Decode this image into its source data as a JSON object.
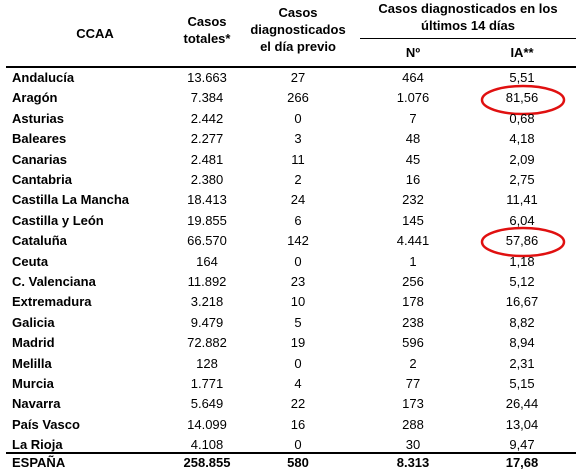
{
  "header": {
    "ccaa": "CCAA",
    "totales": [
      "Casos",
      "totales*"
    ],
    "previo": [
      "Casos",
      "diagnosticados",
      "el día previo"
    ],
    "group": [
      "Casos diagnosticados en los",
      "últimos 14 días"
    ],
    "n": "Nº",
    "ia": "IA**"
  },
  "table": {
    "rows": [
      [
        "Andalucía",
        "13.663",
        "27",
        "464",
        "5,51"
      ],
      [
        "Aragón",
        "7.384",
        "266",
        "1.076",
        "81,56"
      ],
      [
        "Asturias",
        "2.442",
        "0",
        "7",
        "0,68"
      ],
      [
        "Baleares",
        "2.277",
        "3",
        "48",
        "4,18"
      ],
      [
        "Canarias",
        "2.481",
        "11",
        "45",
        "2,09"
      ],
      [
        "Cantabria",
        "2.380",
        "2",
        "16",
        "2,75"
      ],
      [
        "Castilla La Mancha",
        "18.413",
        "24",
        "232",
        "11,41"
      ],
      [
        "Castilla y León",
        "19.855",
        "6",
        "145",
        "6,04"
      ],
      [
        "Cataluña",
        "66.570",
        "142",
        "4.441",
        "57,86"
      ],
      [
        "Ceuta",
        "164",
        "0",
        "1",
        "1,18"
      ],
      [
        "C. Valenciana",
        "11.892",
        "23",
        "256",
        "5,12"
      ],
      [
        "Extremadura",
        "3.218",
        "10",
        "178",
        "16,67"
      ],
      [
        "Galicia",
        "9.479",
        "5",
        "238",
        "8,82"
      ],
      [
        "Madrid",
        "72.882",
        "19",
        "596",
        "8,94"
      ],
      [
        "Melilla",
        "128",
        "0",
        "2",
        "2,31"
      ],
      [
        "Murcia",
        "1.771",
        "4",
        "77",
        "5,15"
      ],
      [
        "Navarra",
        "5.649",
        "22",
        "173",
        "26,44"
      ],
      [
        "País Vasco",
        "14.099",
        "16",
        "288",
        "13,04"
      ],
      [
        "La Rioja",
        "4.108",
        "0",
        "30",
        "9,47"
      ]
    ],
    "total": [
      "ESPAÑA",
      "258.855",
      "580",
      "8.313",
      "17,68"
    ]
  }
}
